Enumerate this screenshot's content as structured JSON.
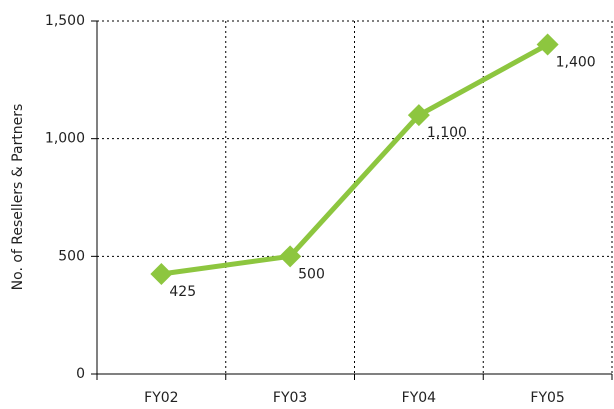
{
  "chart_data": {
    "type": "line",
    "y_label": "No. of Resellers & Partners",
    "categories": [
      "FY02",
      "FY03",
      "FY04",
      "FY05"
    ],
    "values": [
      425,
      500,
      1100,
      1400
    ],
    "value_labels": [
      "425",
      "500",
      "1,100",
      "1,400"
    ],
    "color": "#8dc63f",
    "ylim": [
      0,
      1500
    ],
    "yticks": [
      0,
      500,
      {
        "value": 1000,
        "label": "1,000"
      },
      {
        "value": 1500,
        "label": "1,500"
      }
    ],
    "grid": true
  }
}
